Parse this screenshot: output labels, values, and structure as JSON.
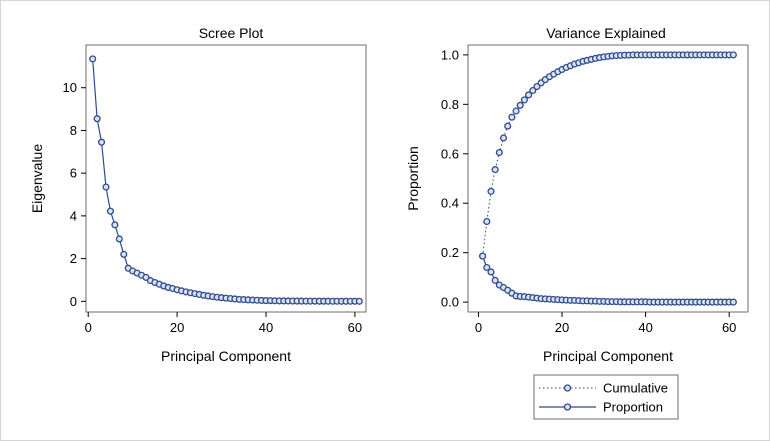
{
  "colors": {
    "series": "#2f4a8e",
    "marker_fill": "#dbe2f1",
    "frame": "#6e6e6e"
  },
  "chart_data": [
    {
      "type": "line",
      "title": "Scree Plot",
      "xlabel": "Principal Component",
      "ylabel": "Eigenvalue",
      "xlim": [
        -0.5,
        62.5
      ],
      "ylim": [
        -0.5,
        12.0
      ],
      "xticks": [
        0,
        20,
        40,
        60
      ],
      "yticks": [
        0,
        2,
        4,
        6,
        8,
        10
      ],
      "grid": false,
      "series": [
        {
          "style": "solid",
          "x": [
            1,
            2,
            3,
            4,
            5,
            6,
            7,
            8,
            9,
            10,
            11,
            12,
            13,
            14,
            15,
            16,
            17,
            18,
            19,
            20,
            21,
            22,
            23,
            24,
            25,
            26,
            27,
            28,
            29,
            30,
            31,
            32,
            33,
            34,
            35,
            36,
            37,
            38,
            39,
            40,
            41,
            42,
            43,
            44,
            45,
            46,
            47,
            48,
            49,
            50,
            51,
            52,
            53,
            54,
            55,
            56,
            57,
            58,
            59,
            60,
            61
          ],
          "values": [
            11.35,
            8.55,
            7.45,
            5.35,
            4.22,
            3.58,
            2.92,
            2.2,
            1.55,
            1.42,
            1.32,
            1.22,
            1.12,
            0.97,
            0.88,
            0.8,
            0.72,
            0.65,
            0.6,
            0.54,
            0.49,
            0.44,
            0.4,
            0.36,
            0.32,
            0.28,
            0.25,
            0.22,
            0.19,
            0.17,
            0.15,
            0.13,
            0.11,
            0.09,
            0.08,
            0.07,
            0.06,
            0.05,
            0.04,
            0.035,
            0.03,
            0.025,
            0.02,
            0.018,
            0.016,
            0.014,
            0.012,
            0.01,
            0.009,
            0.008,
            0.007,
            0.006,
            0.005,
            0.004,
            0.003,
            0.003,
            0.002,
            0.002,
            0.001,
            0.001,
            0.001
          ]
        }
      ]
    },
    {
      "type": "line",
      "title": "Variance Explained",
      "xlabel": "Principal Component",
      "ylabel": "Proportion",
      "xlim": [
        -2.5,
        64.5
      ],
      "ylim": [
        -0.04,
        1.04
      ],
      "xticks": [
        0,
        20,
        40,
        60
      ],
      "yticks": [
        0.0,
        0.2,
        0.4,
        0.6,
        0.8,
        1.0
      ],
      "yticklabels": [
        "0.0",
        "0.2",
        "0.4",
        "0.6",
        "0.8",
        "1.0"
      ],
      "grid": false,
      "legend_position": "bottom",
      "series": [
        {
          "name": "Cumulative",
          "style": "dotted",
          "x": [
            1,
            2,
            3,
            4,
            5,
            6,
            7,
            8,
            9,
            10,
            11,
            12,
            13,
            14,
            15,
            16,
            17,
            18,
            19,
            20,
            21,
            22,
            23,
            24,
            25,
            26,
            27,
            28,
            29,
            30,
            31,
            32,
            33,
            34,
            35,
            36,
            37,
            38,
            39,
            40,
            41,
            42,
            43,
            44,
            45,
            46,
            47,
            48,
            49,
            50,
            51,
            52,
            53,
            54,
            55,
            56,
            57,
            58,
            59,
            60,
            61
          ],
          "values": [
            0.186,
            0.326,
            0.448,
            0.536,
            0.605,
            0.664,
            0.712,
            0.748,
            0.773,
            0.796,
            0.818,
            0.838,
            0.856,
            0.872,
            0.887,
            0.9,
            0.912,
            0.922,
            0.932,
            0.941,
            0.949,
            0.956,
            0.963,
            0.968,
            0.974,
            0.978,
            0.982,
            0.986,
            0.989,
            0.992,
            0.994,
            0.996,
            0.997,
            0.998,
            0.999,
            0.999,
            1.0,
            1.0,
            1.0,
            1.0,
            1.0,
            1.0,
            1.0,
            1.0,
            1.0,
            1.0,
            1.0,
            1.0,
            1.0,
            1.0,
            1.0,
            1.0,
            1.0,
            1.0,
            1.0,
            1.0,
            1.0,
            1.0,
            1.0,
            1.0,
            1.0
          ]
        },
        {
          "name": "Proportion",
          "style": "solid",
          "x": [
            1,
            2,
            3,
            4,
            5,
            6,
            7,
            8,
            9,
            10,
            11,
            12,
            13,
            14,
            15,
            16,
            17,
            18,
            19,
            20,
            21,
            22,
            23,
            24,
            25,
            26,
            27,
            28,
            29,
            30,
            31,
            32,
            33,
            34,
            35,
            36,
            37,
            38,
            39,
            40,
            41,
            42,
            43,
            44,
            45,
            46,
            47,
            48,
            49,
            50,
            51,
            52,
            53,
            54,
            55,
            56,
            57,
            58,
            59,
            60,
            61
          ],
          "values": [
            0.186,
            0.14,
            0.122,
            0.088,
            0.069,
            0.059,
            0.048,
            0.036,
            0.025,
            0.023,
            0.022,
            0.02,
            0.018,
            0.016,
            0.014,
            0.013,
            0.012,
            0.011,
            0.01,
            0.009,
            0.008,
            0.007,
            0.007,
            0.006,
            0.005,
            0.005,
            0.004,
            0.004,
            0.003,
            0.003,
            0.002,
            0.002,
            0.002,
            0.001,
            0.001,
            0.001,
            0.001,
            0.001,
            0.001,
            0.001,
            0,
            0,
            0,
            0,
            0,
            0,
            0,
            0,
            0,
            0,
            0,
            0,
            0,
            0,
            0,
            0,
            0,
            0,
            0,
            0,
            0
          ]
        }
      ]
    }
  ]
}
